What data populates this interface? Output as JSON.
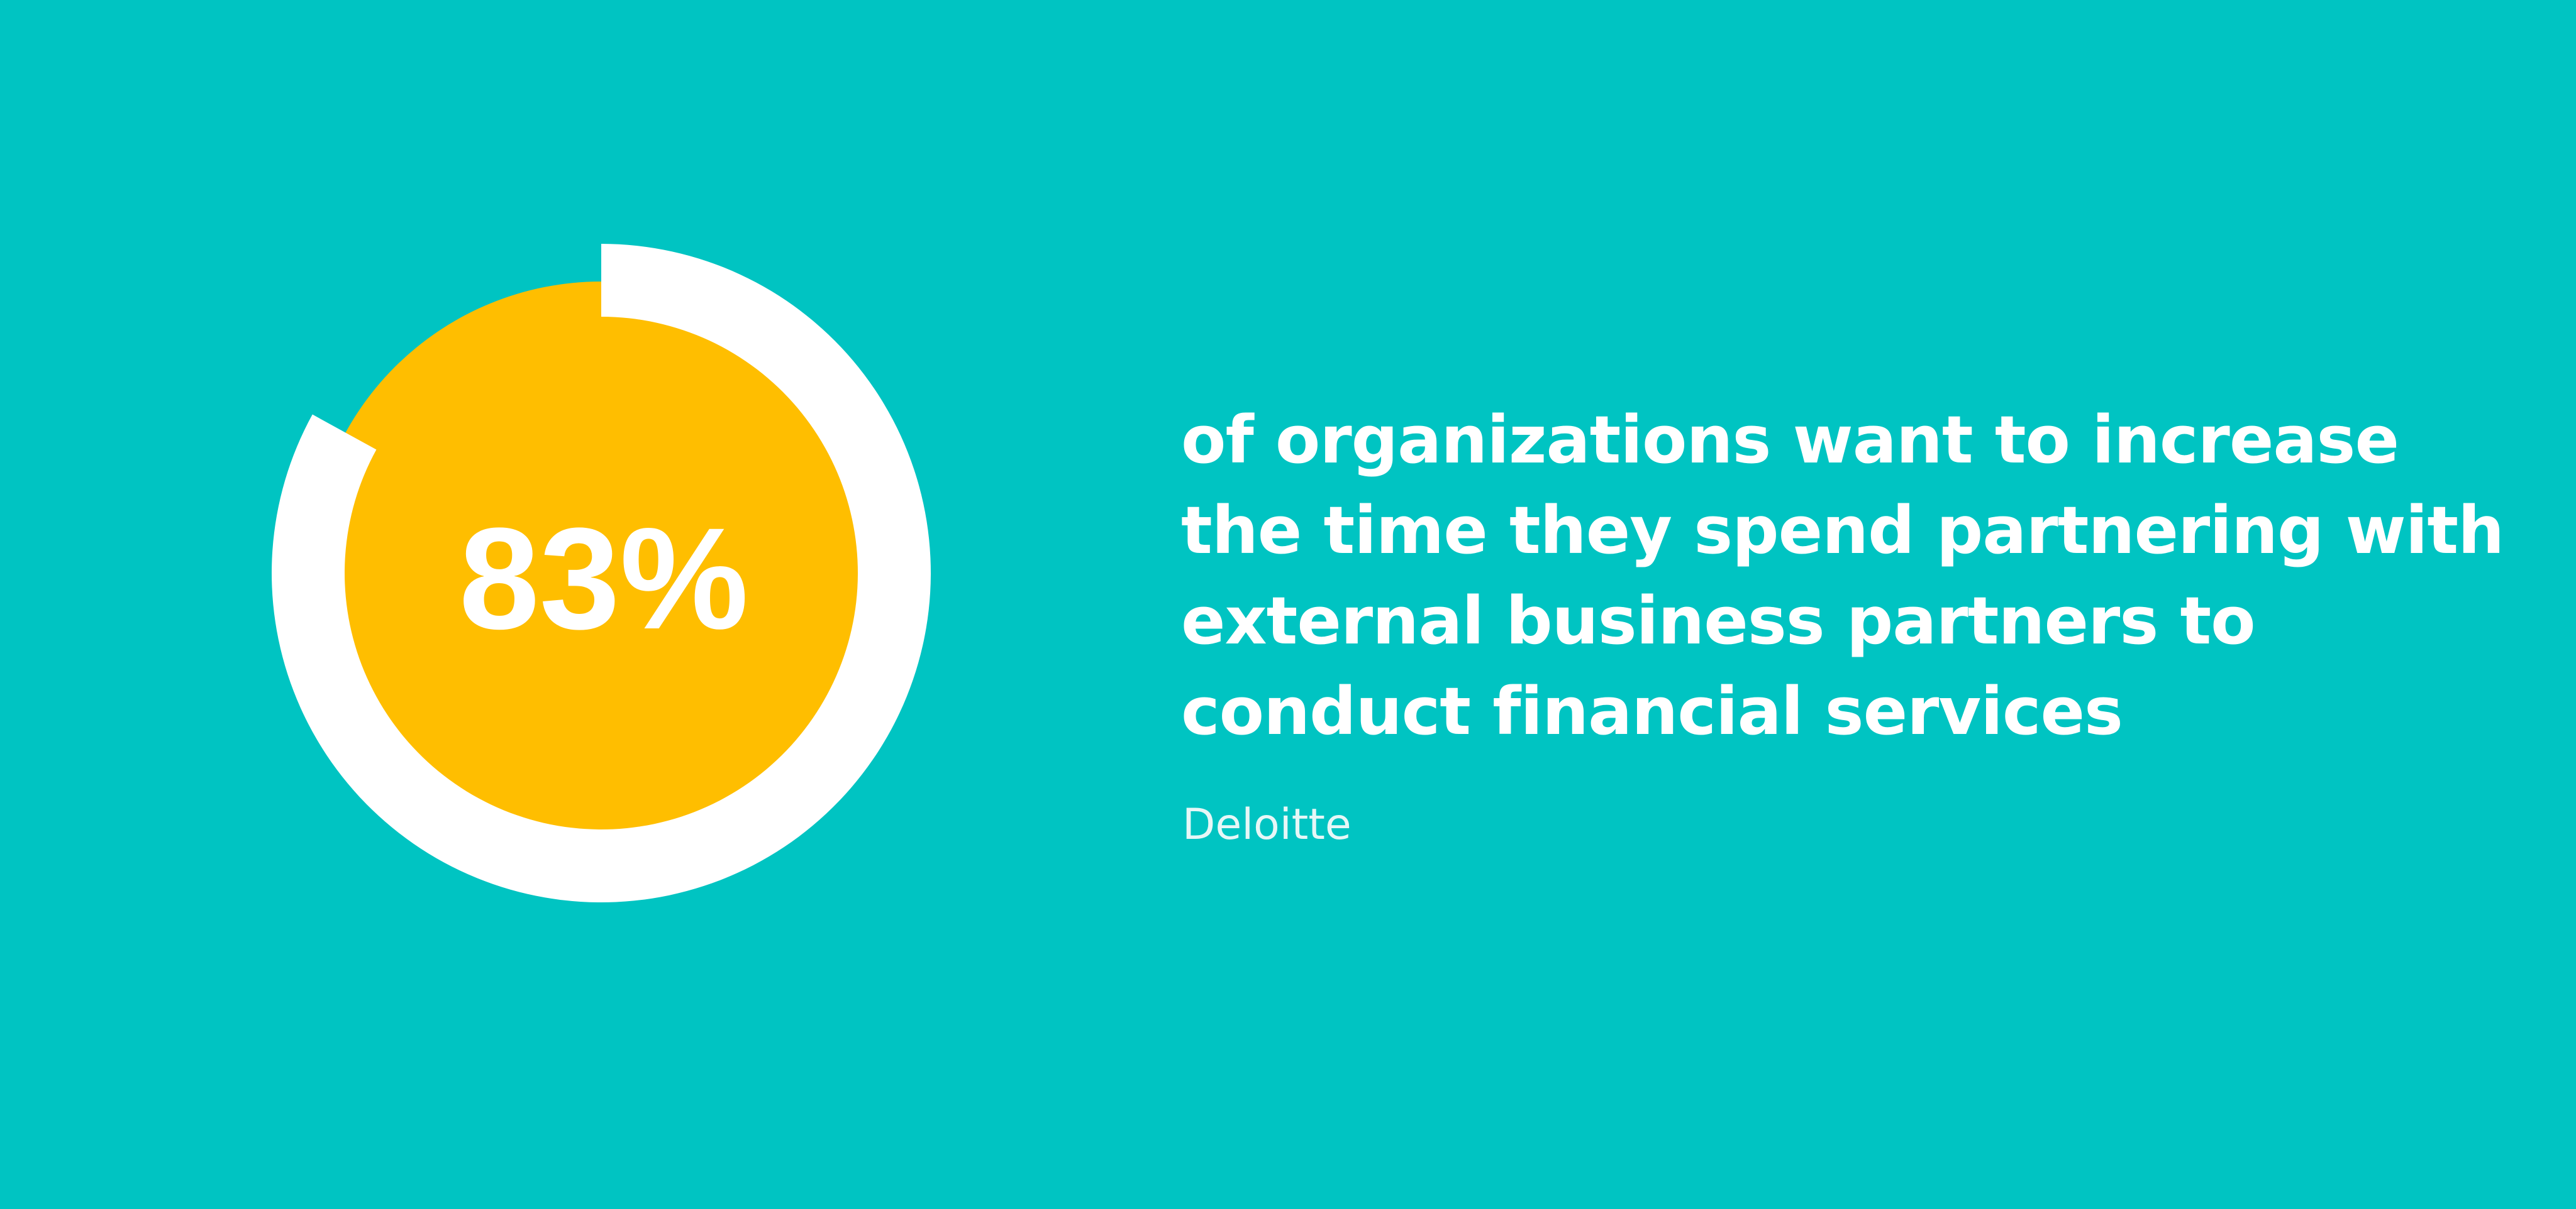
{
  "colors": {
    "background": "#00c4c2",
    "fill": "#ffbe00",
    "ring": "#ffffff",
    "text": "#ffffff",
    "source_text": "#e6f7f7"
  },
  "chart_data": {
    "type": "pie",
    "values": [
      83,
      17
    ],
    "center_label": "83%",
    "caption": "of organizations want to increase the time they spend partnering with external business partners to conduct financial services",
    "source": "Deloitte"
  }
}
